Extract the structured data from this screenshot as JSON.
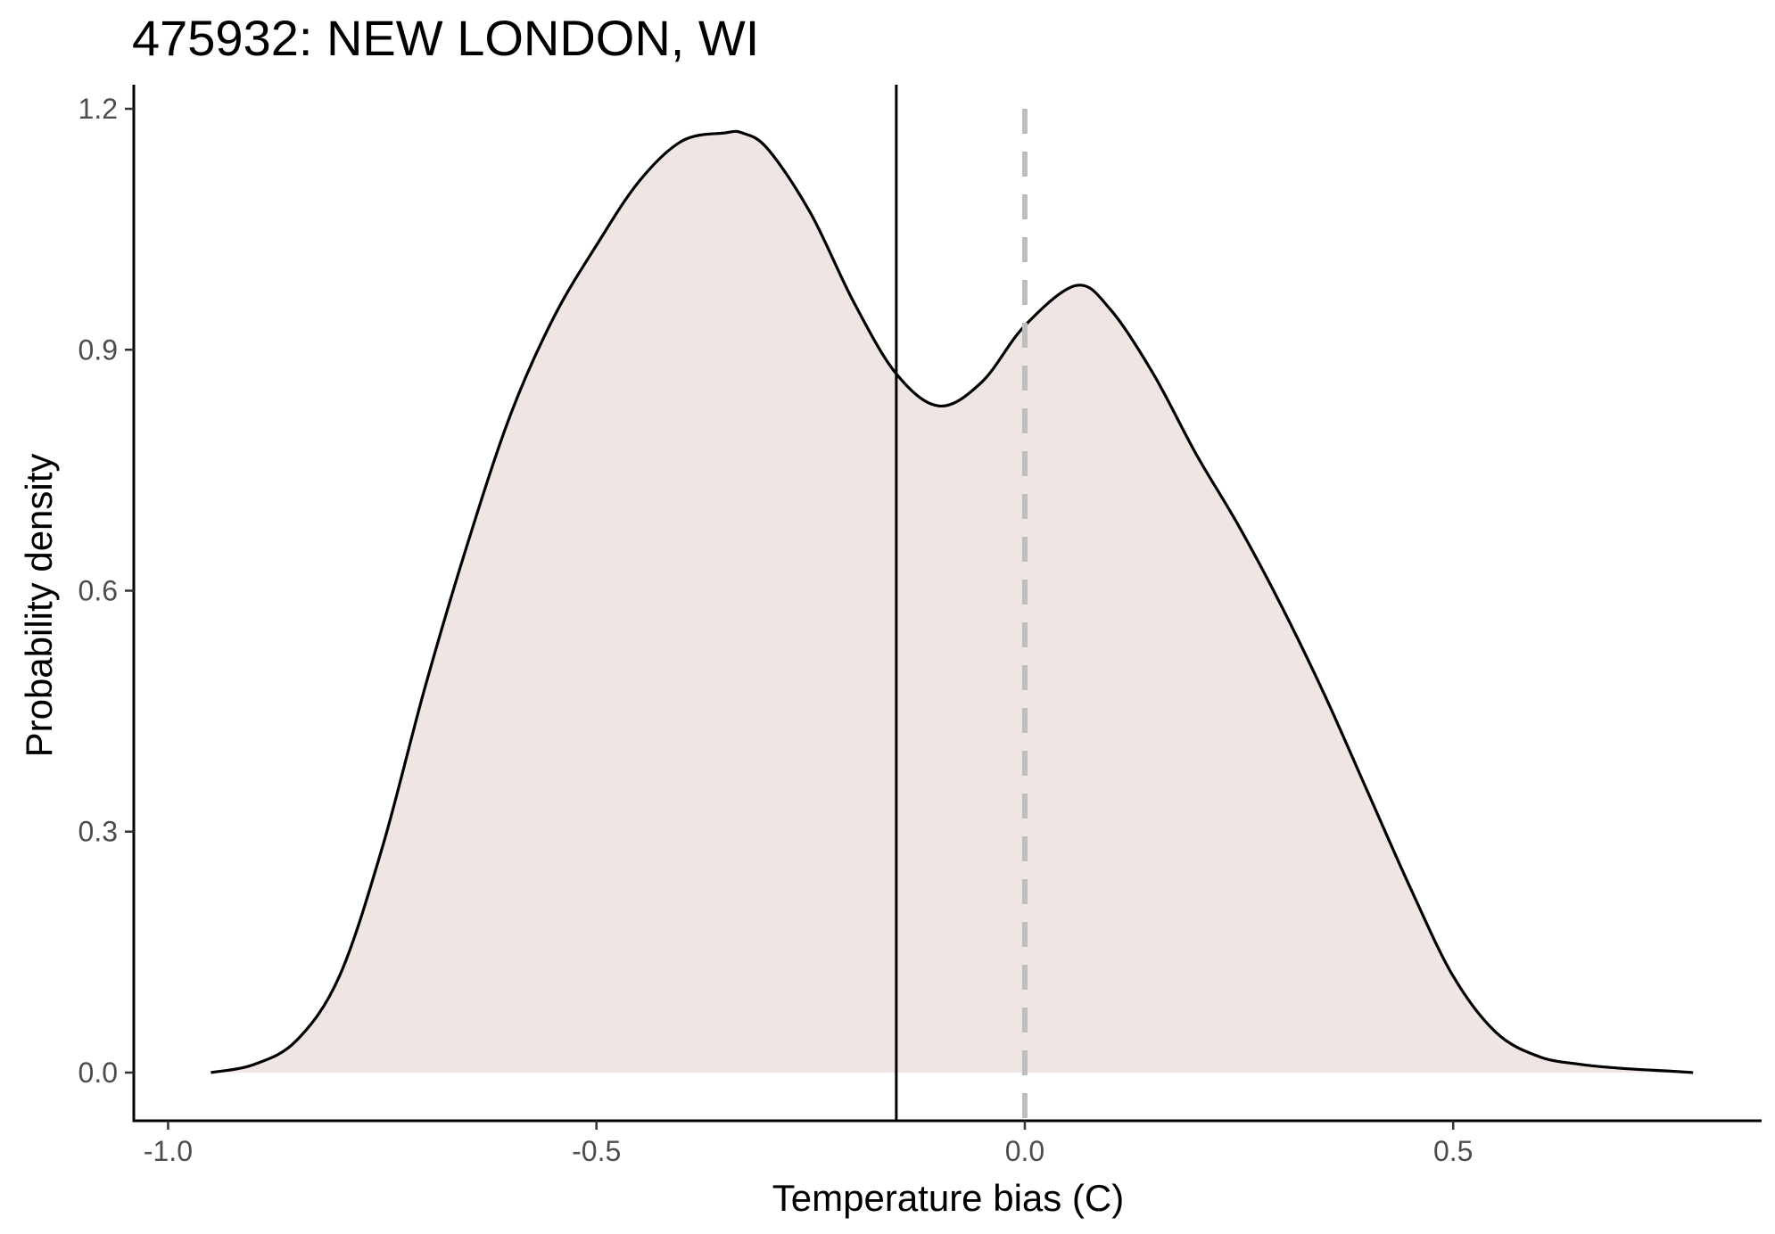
{
  "chart_data": {
    "type": "area",
    "title": "475932: NEW LONDON, WI",
    "xlabel": "Temperature bias (C)",
    "ylabel": "Probability density",
    "xlim": [
      -1.04,
      0.86
    ],
    "ylim": [
      -0.06,
      1.23
    ],
    "x_ticks": [
      -1.0,
      -0.5,
      0.0,
      0.5
    ],
    "x_tick_labels": [
      "-1.0",
      "-0.5",
      "0.0",
      "0.5"
    ],
    "y_ticks": [
      0.0,
      0.3,
      0.6,
      0.9,
      1.2
    ],
    "y_tick_labels": [
      "0.0",
      "0.3",
      "0.6",
      "0.9",
      "1.2"
    ],
    "grid": false,
    "series": [
      {
        "x": [
          -0.95,
          -0.9,
          -0.85,
          -0.8,
          -0.75,
          -0.7,
          -0.65,
          -0.6,
          -0.55,
          -0.5,
          -0.45,
          -0.4,
          -0.35,
          -0.33,
          -0.3,
          -0.25,
          -0.2,
          -0.15,
          -0.1,
          -0.05,
          0.0,
          0.06,
          0.1,
          0.15,
          0.2,
          0.25,
          0.3,
          0.35,
          0.4,
          0.45,
          0.5,
          0.55,
          0.6,
          0.65,
          0.7,
          0.75,
          0.78
        ],
        "y": [
          0.0,
          0.01,
          0.04,
          0.12,
          0.28,
          0.48,
          0.66,
          0.82,
          0.94,
          1.03,
          1.11,
          1.16,
          1.17,
          1.17,
          1.15,
          1.07,
          0.96,
          0.87,
          0.83,
          0.86,
          0.93,
          0.98,
          0.95,
          0.87,
          0.77,
          0.68,
          0.58,
          0.47,
          0.35,
          0.23,
          0.12,
          0.05,
          0.02,
          0.01,
          0.005,
          0.002,
          0.0
        ]
      }
    ],
    "reference_lines": [
      {
        "style": "solid",
        "x": -0.15
      },
      {
        "style": "dashed",
        "x": 0.0
      }
    ],
    "colors": {
      "fill": "#efe6e3",
      "curve": "#000000",
      "solid_line": "#000000",
      "dashed_line": "#bebebe"
    }
  }
}
